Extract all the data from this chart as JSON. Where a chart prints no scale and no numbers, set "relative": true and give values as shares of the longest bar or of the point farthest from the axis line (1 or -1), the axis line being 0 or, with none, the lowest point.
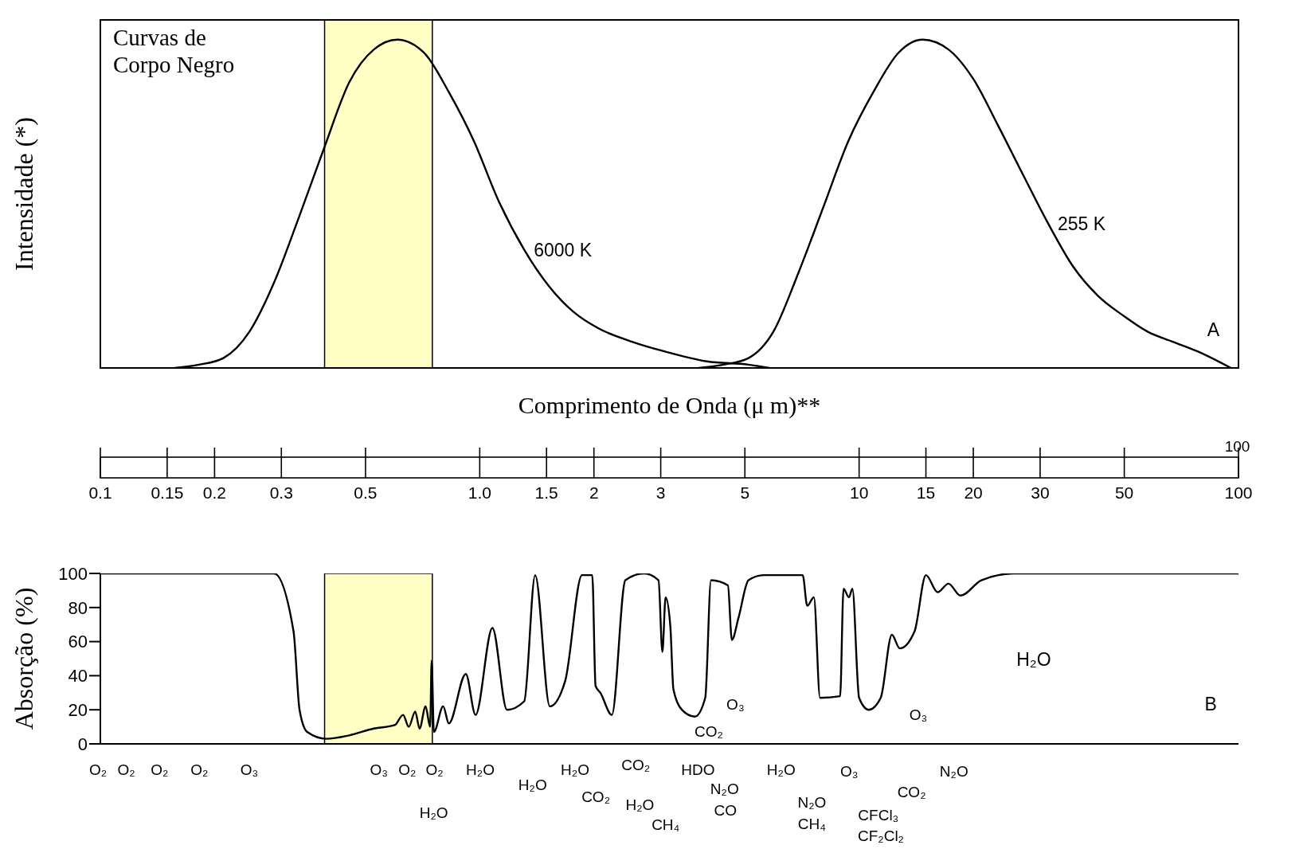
{
  "chart_data": [
    {
      "type": "line",
      "relative": true,
      "ylabel": "Intensidade (*)",
      "xlabel": "Comprimento de Onda (μ m)**",
      "log": "x",
      "xlim": [
        0.1,
        100
      ],
      "xticks": [
        0.1,
        0.15,
        0.2,
        0.3,
        0.5,
        {
          "value": 1,
          "label": "1.0"
        },
        1.5,
        2,
        3,
        5,
        10,
        15,
        20,
        30,
        50,
        100
      ],
      "tick_labels": "x",
      "annotations": [
        "Curvas de Corpo Negro",
        "A",
        "100"
      ],
      "bands": [
        {
          "axis": "x",
          "from": 0.39,
          "to": 0.75,
          "color": "#ffffb3"
        }
      ],
      "series": [
        {
          "name": "6000 K",
          "color": "#000000",
          "x": [
            0.157,
            0.182,
            0.211,
            0.247,
            0.287,
            0.334,
            0.389,
            0.453,
            0.526,
            0.607,
            0.713,
            0.829,
            0.966,
            1.12,
            1.31,
            1.52,
            1.77,
            2.06,
            2.52,
            3.08,
            3.97,
            5.11,
            5.8
          ],
          "values": [
            0,
            0.01,
            0.03,
            0.11,
            0.26,
            0.46,
            0.67,
            0.87,
            0.97,
            1,
            0.96,
            0.84,
            0.69,
            0.51,
            0.36,
            0.25,
            0.17,
            0.12,
            0.08,
            0.05,
            0.02,
            0.01,
            0
          ]
        },
        {
          "name": "255 K",
          "color": "#000000",
          "x": [
            3.78,
            4.39,
            5.11,
            5.94,
            6.92,
            8.05,
            9.36,
            10.9,
            12.7,
            14.7,
            17.2,
            20,
            23.2,
            27,
            31.5,
            36.6,
            42.6,
            49.6,
            57.7,
            67.1,
            78.2,
            95.5
          ],
          "values": [
            0,
            0.01,
            0.03,
            0.11,
            0.29,
            0.49,
            0.69,
            0.84,
            0.96,
            1,
            0.97,
            0.88,
            0.74,
            0.59,
            0.44,
            0.31,
            0.22,
            0.16,
            0.11,
            0.08,
            0.05,
            0
          ]
        }
      ]
    },
    {
      "type": "line",
      "ylabel": "Absorção (%)",
      "log": "x",
      "xlim": [
        0.1,
        100
      ],
      "ylim": [
        0,
        100
      ],
      "yticks": [
        0,
        20,
        40,
        60,
        80,
        100
      ],
      "tick_labels": "y",
      "bands": [
        {
          "axis": "x",
          "from": 0.39,
          "to": 0.75,
          "color": "#ffffb3"
        }
      ],
      "annotations": [
        "B",
        "H₂O",
        "O₃",
        "CO₂",
        "O₃",
        "O₂",
        "O₂",
        "O₂",
        "O₂",
        "O₃",
        "O₃",
        "O₂",
        "O₂",
        "H₂O",
        "H₂O",
        "H₂O",
        "H₂O",
        "CO₂",
        "CO₂",
        "H₂O",
        "CH₄",
        "HDO",
        "N₂O",
        "CO",
        "H₂O",
        "N₂O",
        "CH₄",
        "O₃",
        "CFCl₃",
        "CF₂Cl₂",
        "CO₂",
        "N₂O"
      ],
      "series": [
        {
          "color": "#000000",
          "x": [
            0.1,
            0.287,
            0.323,
            0.335,
            0.351,
            0.394,
            0.453,
            0.526,
            0.597,
            0.628,
            0.65,
            0.676,
            0.694,
            0.72,
            0.74,
            0.747,
            0.757,
            0.801,
            0.829,
            0.919,
            0.975,
            1.08,
            1.18,
            1.31,
            1.4,
            1.53,
            1.68,
            1.86,
            1.98,
            2.02,
            2.08,
            2.23,
            2.42,
            2.71,
            2.96,
            3.03,
            3.09,
            3.18,
            3.24,
            3.41,
            3.69,
            3.93,
            4.07,
            4.51,
            4.62,
            4.81,
            5.11,
            5.6,
            7.1,
            7.3,
            7.6,
            7.89,
            8.91,
            9.1,
            9.4,
            9.6,
            10,
            10.6,
            11.4,
            12.2,
            12.8,
            14,
            15,
            16.1,
            17.2,
            18.5,
            21,
            25.7,
            100
          ],
          "values": [
            100,
            100,
            66,
            20,
            7,
            3,
            5,
            9,
            11,
            17,
            10,
            19,
            9,
            22,
            10,
            49,
            7,
            22,
            12,
            41,
            17,
            68,
            20,
            25,
            99,
            22,
            37,
            99,
            99,
            34,
            30,
            17,
            96,
            100,
            96,
            54,
            86,
            69,
            32,
            20,
            16,
            27,
            96,
            93,
            61,
            74,
            96,
            99,
            99,
            81,
            86,
            27,
            28,
            91,
            86,
            91,
            27,
            20,
            27,
            64,
            56,
            66,
            99,
            89,
            94,
            87,
            96,
            100,
            100
          ]
        }
      ]
    }
  ]
}
